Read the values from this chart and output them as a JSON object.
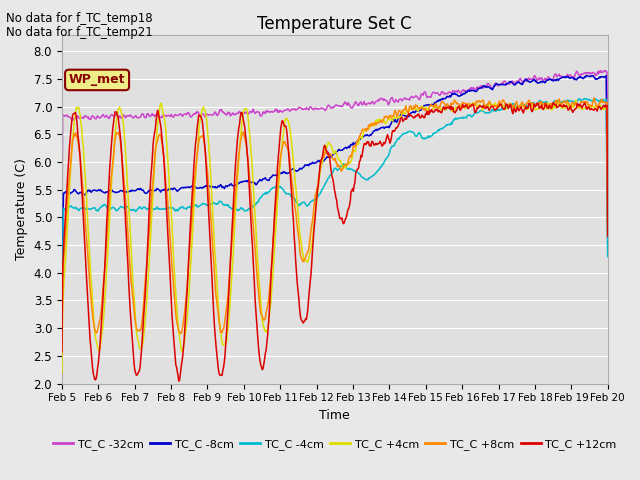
{
  "title": "Temperature Set C",
  "xlabel": "Time",
  "ylabel": "Temperature (C)",
  "ylim": [
    2.0,
    8.3
  ],
  "yticks": [
    2.0,
    2.5,
    3.0,
    3.5,
    4.0,
    4.5,
    5.0,
    5.5,
    6.0,
    6.5,
    7.0,
    7.5,
    8.0
  ],
  "date_labels": [
    "Feb 5",
    "Feb 6",
    "Feb 7",
    "Feb 8",
    "Feb 9",
    "Feb 10",
    "Feb 11",
    "Feb 12",
    "Feb 13",
    "Feb 14",
    "Feb 15",
    "Feb 16",
    "Feb 17",
    "Feb 18",
    "Feb 19",
    "Feb 20"
  ],
  "no_data_text": [
    "No data for f_TC_temp18",
    "No data for f_TC_temp21"
  ],
  "wp_met_box_color": "#eeee88",
  "wp_met_text_color": "#880000",
  "series": [
    {
      "label": "TC_C -32cm",
      "color": "#cc44cc"
    },
    {
      "label": "TC_C -8cm",
      "color": "#0000cc"
    },
    {
      "label": "TC_C -4cm",
      "color": "#00bbcc"
    },
    {
      "label": "TC_C +4cm",
      "color": "#dddd00"
    },
    {
      "label": "TC_C +8cm",
      "color": "#ff8800"
    },
    {
      "label": "TC_C +12cm",
      "color": "#dd0000"
    }
  ],
  "background_color": "#e8e8e8",
  "plot_bg_color": "#e0e0e0",
  "grid_color": "#ffffff",
  "figsize": [
    6.4,
    4.8
  ],
  "dpi": 100,
  "num_points": 720,
  "seed": 42
}
